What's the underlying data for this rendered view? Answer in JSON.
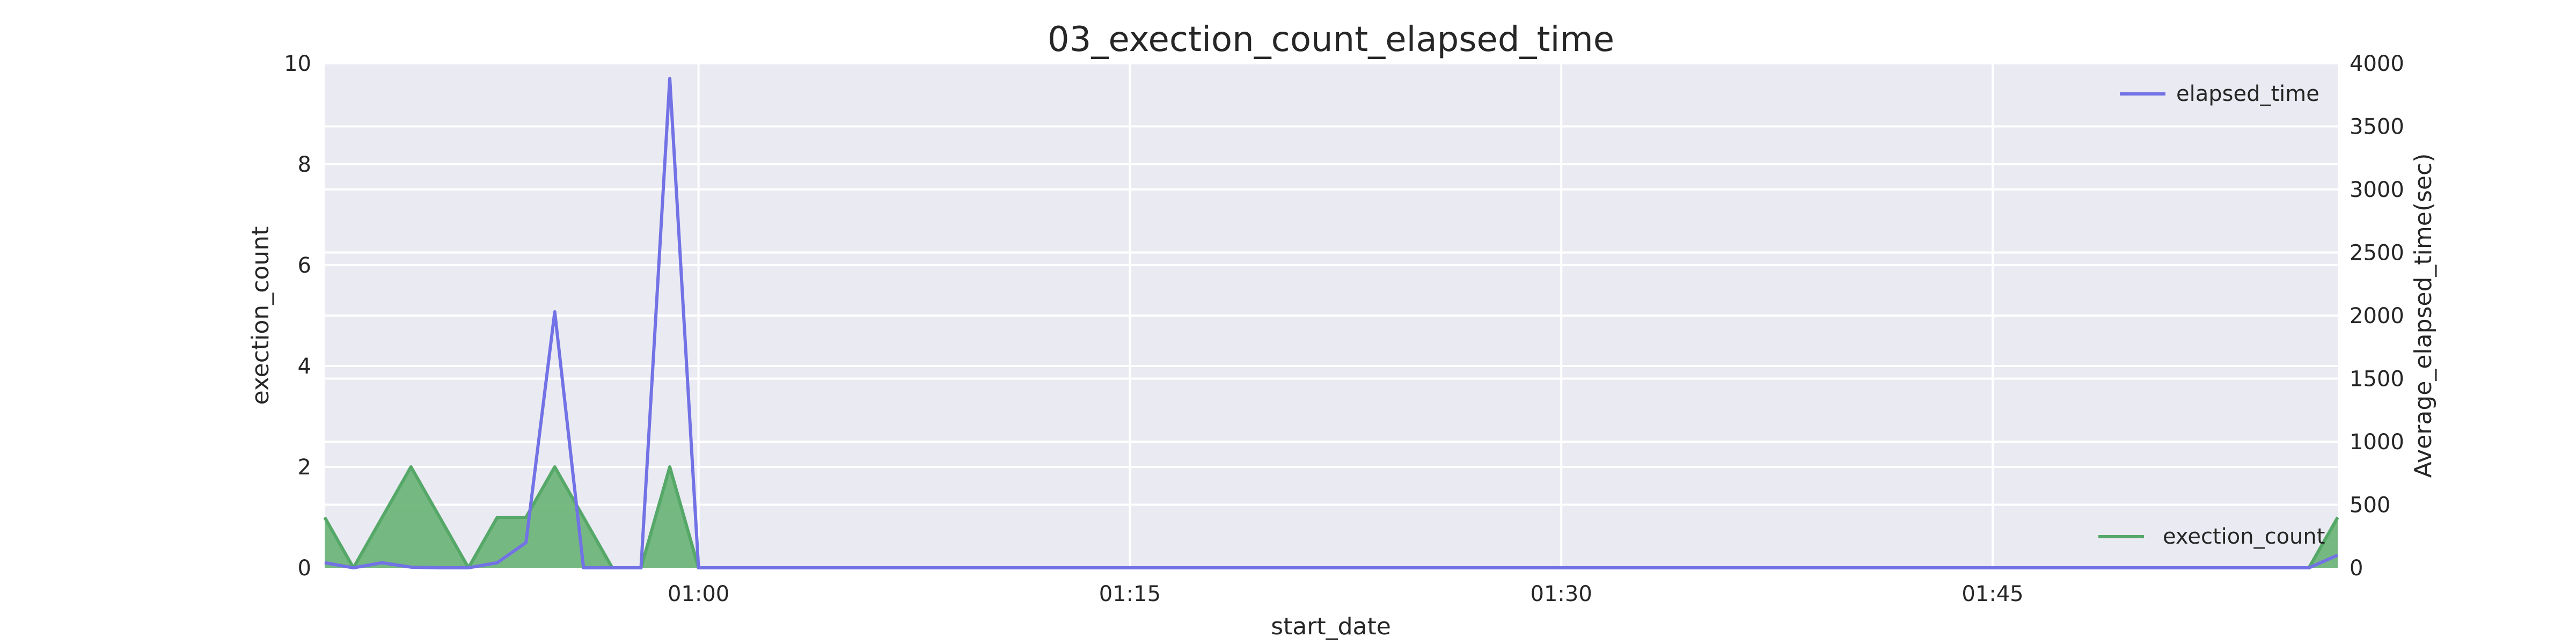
{
  "chart_data": {
    "type": "line",
    "title": "03_exection_count_elapsed_time",
    "xlabel": "start_date",
    "ylabel_left": "exection_count",
    "ylabel_right": "Average_elapsed_time(sec)",
    "x_tick_labels": [
      "01:00",
      "01:15",
      "01:30",
      "01:45"
    ],
    "x_tick_minutes": [
      2,
      17,
      32,
      47
    ],
    "xlim_minutes": [
      -11,
      59
    ],
    "ylim_left": [
      0,
      10
    ],
    "yticks_left": [
      0,
      2,
      4,
      6,
      8,
      10
    ],
    "ylim_right": [
      0,
      4000
    ],
    "yticks_right": [
      0,
      500,
      1000,
      1500,
      2000,
      2500,
      3000,
      3500,
      4000
    ],
    "grid": true,
    "series": [
      {
        "name": "exection_count",
        "axis": "left",
        "kind": "area",
        "color": "#55a868",
        "fill": "#6fb57a",
        "points": [
          [
            -11,
            1
          ],
          [
            -10,
            0
          ],
          [
            -9,
            1
          ],
          [
            -8,
            2
          ],
          [
            -7,
            1
          ],
          [
            -6,
            0
          ],
          [
            -5,
            1
          ],
          [
            -4,
            1
          ],
          [
            -3,
            2
          ],
          [
            -2,
            1
          ],
          [
            -1,
            0
          ],
          [
            0,
            0
          ],
          [
            1,
            2
          ],
          [
            2,
            0
          ],
          [
            58,
            0
          ],
          [
            59,
            1
          ]
        ]
      },
      {
        "name": "elapsed_time",
        "axis": "right",
        "kind": "line",
        "color": "#7272e6",
        "points": [
          [
            -11,
            40
          ],
          [
            -10,
            0
          ],
          [
            -9,
            40
          ],
          [
            -8,
            5
          ],
          [
            -7,
            0
          ],
          [
            -6,
            0
          ],
          [
            -5,
            40
          ],
          [
            -4,
            200
          ],
          [
            -3,
            2030
          ],
          [
            -2,
            0
          ],
          [
            -1,
            0
          ],
          [
            0,
            0
          ],
          [
            1,
            3880
          ],
          [
            2,
            0
          ],
          [
            58,
            0
          ],
          [
            59,
            100
          ]
        ]
      }
    ],
    "legend": [
      {
        "label": "elapsed_time",
        "placement": "top-right",
        "color": "#7272e6"
      },
      {
        "label": "exection_count",
        "placement": "bottom-right",
        "color": "#55a868"
      }
    ]
  }
}
